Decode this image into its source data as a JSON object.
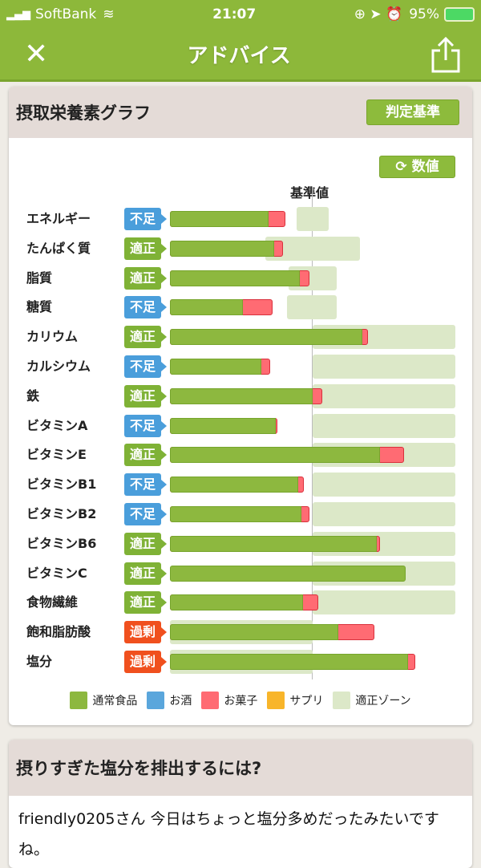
{
  "status_bar": {
    "carrier": "SoftBank",
    "time": "21:07",
    "battery": "95%"
  },
  "nav": {
    "title": "アドバイス",
    "close_icon": "close-icon",
    "share_icon": "share-icon"
  },
  "graph_card": {
    "title": "摂取栄養素グラフ",
    "criteria_button": "判定基準",
    "values_button": "数値",
    "reference_label": "基準値"
  },
  "colors": {
    "food": "#8db83f",
    "alcohol": "#5aa6dc",
    "snack": "#ff6b73",
    "supplement": "#f8b52a",
    "zone": "#dce8c8",
    "insufficient": "#4a9edb",
    "adequate": "#7fb236",
    "excess": "#f0501e"
  },
  "chart_data": {
    "type": "bar",
    "stacked": true,
    "orientation": "horizontal",
    "reference_value": 100,
    "unit": "% of reference (estimated)",
    "rows": [
      {
        "name": "エネルギー",
        "status": "不足",
        "food": 69,
        "snack": 12,
        "zone": [
          89,
          111
        ]
      },
      {
        "name": "たんぱく質",
        "status": "適正",
        "food": 73,
        "snack": 6,
        "zone": [
          67,
          133
        ]
      },
      {
        "name": "脂質",
        "status": "適正",
        "food": 91,
        "snack": 7,
        "zone": [
          83,
          117
        ]
      },
      {
        "name": "糖質",
        "status": "不足",
        "food": 51,
        "snack": 21,
        "zone": [
          82,
          117
        ]
      },
      {
        "name": "カリウム",
        "status": "適正",
        "food": 135,
        "snack": 4,
        "zone": [
          100,
          200
        ]
      },
      {
        "name": "カルシウム",
        "status": "不足",
        "food": 64,
        "snack": 6,
        "zone": [
          100,
          200
        ]
      },
      {
        "name": "鉄",
        "status": "適正",
        "food": 100,
        "snack": 7,
        "zone": [
          100,
          200
        ]
      },
      {
        "name": "ビタミンA",
        "status": "不足",
        "food": 74,
        "snack": 1,
        "zone": [
          100,
          200
        ]
      },
      {
        "name": "ビタミンE",
        "status": "適正",
        "food": 147,
        "snack": 17,
        "zone": [
          100,
          200
        ]
      },
      {
        "name": "ビタミンB1",
        "status": "不足",
        "food": 90,
        "snack": 4,
        "zone": [
          100,
          200
        ]
      },
      {
        "name": "ビタミンB2",
        "status": "不足",
        "food": 92,
        "snack": 6,
        "zone": [
          100,
          200
        ]
      },
      {
        "name": "ビタミンB6",
        "status": "適正",
        "food": 145,
        "snack": 2,
        "zone": [
          100,
          200
        ]
      },
      {
        "name": "ビタミンC",
        "status": "適正",
        "food": 165,
        "snack": 0,
        "zone": [
          100,
          200
        ]
      },
      {
        "name": "食物繊維",
        "status": "適正",
        "food": 93,
        "snack": 11,
        "zone": [
          100,
          200
        ]
      },
      {
        "name": "飽和脂肪酸",
        "status": "過剰",
        "food": 118,
        "snack": 25,
        "zone": [
          0,
          100
        ]
      },
      {
        "name": "塩分",
        "status": "過剰",
        "food": 167,
        "snack": 5,
        "zone": [
          0,
          100
        ]
      }
    ],
    "legend": [
      "通常食品",
      "お酒",
      "お菓子",
      "サプリ",
      "適正ゾーン"
    ]
  },
  "advice_card": {
    "title": "摂りすぎた塩分を排出するには?",
    "body": "friendly0205さん 今日はちょっと塩分多めだったみたいですね。"
  }
}
